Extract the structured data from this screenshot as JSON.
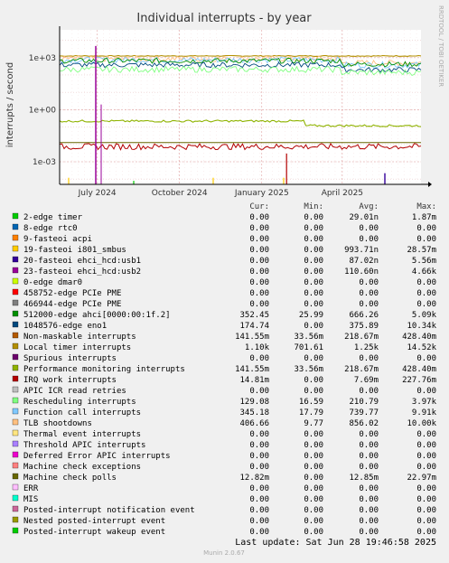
{
  "chart_data": {
    "type": "line",
    "title": "Individual interrupts - by year",
    "ylabel": "interrupts / second",
    "side_label": "RRDTOOL / TOBI OETIKER",
    "y_scale": "log",
    "ylim": [
      5e-05,
      40000
    ],
    "y_ticks": [
      {
        "value": 1000,
        "label": "1e+03"
      },
      {
        "value": 1,
        "label": "1e+00"
      },
      {
        "value": 0.001,
        "label": "1e-03"
      }
    ],
    "x_range": [
      "2024-05-20",
      "2025-06-28"
    ],
    "x_ticks": [
      {
        "date": "2024-07-01",
        "label": "July 2024"
      },
      {
        "date": "2024-10-01",
        "label": "October 2024"
      },
      {
        "date": "2025-01-01",
        "label": "January 2025"
      },
      {
        "date": "2025-04-01",
        "label": "April 2025"
      }
    ],
    "column_headers": [
      "Cur:",
      "Min:",
      "Avg:",
      "Max:"
    ],
    "series": [
      {
        "name": "2-edge      timer",
        "color": "#00cc00",
        "cur": "0.00",
        "min": "0.00",
        "avg": "29.01n",
        "max": "1.87m"
      },
      {
        "name": "8-edge      rtc0",
        "color": "#0066b3",
        "cur": "0.00",
        "min": "0.00",
        "avg": "0.00",
        "max": "0.00"
      },
      {
        "name": "9-fasteoi   acpi",
        "color": "#ff8000",
        "cur": "0.00",
        "min": "0.00",
        "avg": "0.00",
        "max": "0.00"
      },
      {
        "name": "19-fasteoi   i801_smbus",
        "color": "#ffcc00",
        "cur": "0.00",
        "min": "0.00",
        "avg": "993.71n",
        "max": "28.57m"
      },
      {
        "name": "20-fasteoi   ehci_hcd:usb1",
        "color": "#330099",
        "cur": "0.00",
        "min": "0.00",
        "avg": "87.02n",
        "max": "5.56m"
      },
      {
        "name": "23-fasteoi   ehci_hcd:usb2",
        "color": "#990099",
        "cur": "0.00",
        "min": "0.00",
        "avg": "110.60n",
        "max": "4.66k"
      },
      {
        "name": "0-edge      dmar0",
        "color": "#ccff00",
        "cur": "0.00",
        "min": "0.00",
        "avg": "0.00",
        "max": "0.00"
      },
      {
        "name": "458752-edge      PCIe PME",
        "color": "#ff0000",
        "cur": "0.00",
        "min": "0.00",
        "avg": "0.00",
        "max": "0.00"
      },
      {
        "name": "466944-edge      PCIe PME",
        "color": "#808080",
        "cur": "0.00",
        "min": "0.00",
        "avg": "0.00",
        "max": "0.00"
      },
      {
        "name": "512000-edge      ahci[0000:00:1f.2]",
        "color": "#008f00",
        "cur": "352.45",
        "min": "25.99",
        "avg": "666.26",
        "max": "5.09k"
      },
      {
        "name": "1048576-edge      eno1",
        "color": "#00487d",
        "cur": "174.74",
        "min": "0.00",
        "avg": "375.89",
        "max": "10.34k"
      },
      {
        "name": "Non-maskable interrupts",
        "color": "#b35a00",
        "cur": "141.55m",
        "min": "33.56m",
        "avg": "218.67m",
        "max": "428.40m"
      },
      {
        "name": "Local timer interrupts",
        "color": "#b38f00",
        "cur": "1.10k",
        "min": "701.61",
        "avg": "1.25k",
        "max": "14.52k"
      },
      {
        "name": "Spurious interrupts",
        "color": "#6b006b",
        "cur": "0.00",
        "min": "0.00",
        "avg": "0.00",
        "max": "0.00"
      },
      {
        "name": "Performance monitoring interrupts",
        "color": "#8fb300",
        "cur": "141.55m",
        "min": "33.56m",
        "avg": "218.67m",
        "max": "428.40m"
      },
      {
        "name": "IRQ work interrupts",
        "color": "#b30000",
        "cur": "14.81m",
        "min": "0.00",
        "avg": "7.69m",
        "max": "227.76m"
      },
      {
        "name": "APIC ICR read retries",
        "color": "#bebebe",
        "cur": "0.00",
        "min": "0.00",
        "avg": "0.00",
        "max": "0.00"
      },
      {
        "name": "Rescheduling interrupts",
        "color": "#80ff80",
        "cur": "129.08",
        "min": "16.59",
        "avg": "210.79",
        "max": "3.97k"
      },
      {
        "name": "Function call interrupts",
        "color": "#80c9ff",
        "cur": "345.18",
        "min": "17.79",
        "avg": "739.77",
        "max": "9.91k"
      },
      {
        "name": "TLB shootdowns",
        "color": "#ffc080",
        "cur": "406.66",
        "min": "9.77",
        "avg": "856.02",
        "max": "10.00k"
      },
      {
        "name": "Thermal event interrupts",
        "color": "#ffe680",
        "cur": "0.00",
        "min": "0.00",
        "avg": "0.00",
        "max": "0.00"
      },
      {
        "name": "Threshold APIC interrupts",
        "color": "#aa80ff",
        "cur": "0.00",
        "min": "0.00",
        "avg": "0.00",
        "max": "0.00"
      },
      {
        "name": "Deferred Error APIC interrupts",
        "color": "#ee00cc",
        "cur": "0.00",
        "min": "0.00",
        "avg": "0.00",
        "max": "0.00"
      },
      {
        "name": "Machine check exceptions",
        "color": "#ff8080",
        "cur": "0.00",
        "min": "0.00",
        "avg": "0.00",
        "max": "0.00"
      },
      {
        "name": "Machine check polls",
        "color": "#666600",
        "cur": "12.82m",
        "min": "0.00",
        "avg": "12.85m",
        "max": "22.97m"
      },
      {
        "name": "ERR",
        "color": "#ffbfff",
        "cur": "0.00",
        "min": "0.00",
        "avg": "0.00",
        "max": "0.00"
      },
      {
        "name": "MIS",
        "color": "#00ffcc",
        "cur": "0.00",
        "min": "0.00",
        "avg": "0.00",
        "max": "0.00"
      },
      {
        "name": "Posted-interrupt notification event",
        "color": "#cc6699",
        "cur": "0.00",
        "min": "0.00",
        "avg": "0.00",
        "max": "0.00"
      },
      {
        "name": "Nested posted-interrupt event",
        "color": "#999900",
        "cur": "0.00",
        "min": "0.00",
        "avg": "0.00",
        "max": "0.00"
      },
      {
        "name": "Posted-interrupt wakeup event",
        "color": "#00cc00",
        "cur": "0.00",
        "min": "0.00",
        "avg": "0.00",
        "max": "0.00"
      }
    ],
    "last_update": "Last update: Sat Jun 28 19:46:58 2025",
    "footer": "Munin 2.0.67"
  }
}
